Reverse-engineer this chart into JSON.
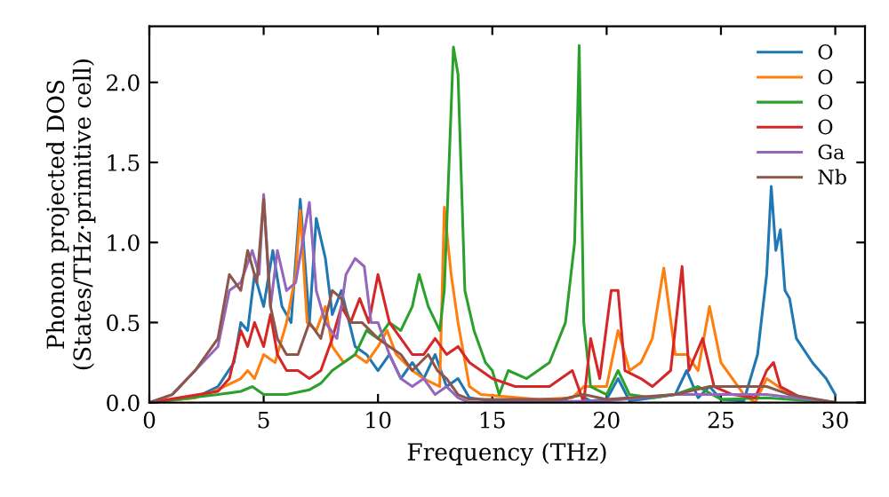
{
  "chart_data": {
    "type": "line",
    "xlabel": "Frequency (THz)",
    "ylabel": "Phonon projected DOS\n(States/THz·primitive cell)",
    "xlim": [
      0,
      31.3
    ],
    "xticks": [
      0,
      5,
      10,
      15,
      20,
      25,
      30
    ],
    "ylim": [
      0,
      2.35
    ],
    "yticks": [
      {
        "value": 0,
        "label": "0.0"
      },
      0.5,
      {
        "value": 1,
        "label": "1.0"
      },
      1.5,
      {
        "value": 2,
        "label": "2.0"
      }
    ],
    "legend": "top right",
    "grid": false,
    "series": [
      {
        "name": "O",
        "color": "#1f77b4",
        "x": [
          0,
          2,
          3,
          3.7,
          4,
          4.3,
          4.6,
          5,
          5.4,
          5.8,
          6.2,
          6.6,
          7,
          7.3,
          7.7,
          8,
          8.4,
          9,
          9.5,
          10,
          10.5,
          11,
          11.5,
          12,
          12.5,
          13,
          13.5,
          14,
          15,
          18,
          18.8,
          19.3,
          20,
          20.5,
          21,
          22,
          23,
          23.5,
          24,
          24.5,
          25,
          26,
          26.6,
          27,
          27.2,
          27.4,
          27.6,
          27.8,
          28,
          28.3,
          29,
          29.6,
          30
        ],
        "values": [
          0,
          0.03,
          0.1,
          0.25,
          0.5,
          0.45,
          0.8,
          0.6,
          0.95,
          0.6,
          0.5,
          1.27,
          0.5,
          1.15,
          0.9,
          0.55,
          0.7,
          0.35,
          0.3,
          0.2,
          0.3,
          0.15,
          0.25,
          0.15,
          0.3,
          0.1,
          0.15,
          0.03,
          0.01,
          0.01,
          0.05,
          0.01,
          0.02,
          0.15,
          0.01,
          0.03,
          0.05,
          0.2,
          0.03,
          0.1,
          0.02,
          0.01,
          0.3,
          0.8,
          1.35,
          0.95,
          1.08,
          0.7,
          0.65,
          0.4,
          0.25,
          0.15,
          0.05
        ]
      },
      {
        "name": "O",
        "color": "#ff7f0e",
        "x": [
          0,
          2,
          3,
          4,
          4.3,
          4.6,
          5,
          5.5,
          6,
          6.4,
          6.6,
          6.9,
          7.3,
          7.7,
          8,
          8.5,
          9,
          9.5,
          10,
          10.4,
          10.8,
          11.5,
          12,
          12.7,
          12.9,
          13.2,
          13.5,
          14,
          14.5,
          17,
          18.5,
          19,
          20,
          20.5,
          21,
          21.5,
          22,
          22.5,
          23,
          23.5,
          24,
          24.5,
          25,
          26,
          26.5,
          27,
          28,
          29,
          30
        ],
        "values": [
          0,
          0.03,
          0.08,
          0.15,
          0.2,
          0.15,
          0.3,
          0.25,
          0.5,
          0.8,
          1.2,
          0.5,
          0.45,
          0.6,
          0.35,
          0.25,
          0.3,
          0.25,
          0.35,
          0.45,
          0.3,
          0.2,
          0.15,
          0.1,
          1.22,
          0.8,
          0.5,
          0.1,
          0.05,
          0.02,
          0.03,
          0.1,
          0.1,
          0.45,
          0.2,
          0.25,
          0.4,
          0.84,
          0.3,
          0.3,
          0.2,
          0.6,
          0.25,
          0.05,
          0.0,
          0.15,
          0.05,
          0.02,
          0.0
        ]
      },
      {
        "name": "O",
        "color": "#2ca02c",
        "x": [
          0,
          3,
          4,
          4.5,
          5,
          6,
          7,
          7.5,
          8,
          9,
          9.5,
          10,
          10.5,
          11,
          11.5,
          11.8,
          12.2,
          12.7,
          12.9,
          13.3,
          13.5,
          13.8,
          14.2,
          14.7,
          15,
          15.3,
          15.7,
          16.5,
          17.5,
          18.2,
          18.6,
          18.8,
          19,
          19.3,
          20,
          20.5,
          21,
          22,
          23,
          24,
          25,
          27,
          28,
          30
        ],
        "values": [
          0,
          0.05,
          0.07,
          0.1,
          0.05,
          0.05,
          0.08,
          0.12,
          0.2,
          0.3,
          0.45,
          0.4,
          0.5,
          0.45,
          0.6,
          0.8,
          0.6,
          0.45,
          0.7,
          2.22,
          2.05,
          0.7,
          0.45,
          0.25,
          0.2,
          0.05,
          0.2,
          0.15,
          0.25,
          0.5,
          1.0,
          2.23,
          0.5,
          0.1,
          0.05,
          0.2,
          0.05,
          0.03,
          0.05,
          0.1,
          0.02,
          0.03,
          0.02,
          0.0
        ]
      },
      {
        "name": "O",
        "color": "#d62728",
        "x": [
          0,
          3,
          3.5,
          4,
          4.3,
          4.6,
          5,
          5.3,
          5.6,
          6,
          6.5,
          7,
          7.5,
          8,
          8.4,
          8.8,
          9.2,
          9.6,
          10,
          10.5,
          11,
          11.5,
          12,
          12.5,
          13,
          13.5,
          14,
          14.5,
          15,
          16,
          17.5,
          18.5,
          19,
          19.3,
          19.7,
          20.2,
          20.5,
          20.8,
          21.5,
          22,
          22.8,
          23.3,
          23.6,
          24.2,
          24.7,
          25.5,
          26.5,
          27,
          27.3,
          27.6,
          28.5,
          30
        ],
        "values": [
          0,
          0.07,
          0.15,
          0.45,
          0.35,
          0.5,
          0.35,
          0.55,
          0.3,
          0.2,
          0.2,
          0.15,
          0.2,
          0.4,
          0.6,
          0.5,
          0.65,
          0.5,
          0.8,
          0.5,
          0.4,
          0.3,
          0.3,
          0.4,
          0.3,
          0.35,
          0.25,
          0.2,
          0.15,
          0.1,
          0.1,
          0.2,
          0.0,
          0.4,
          0.15,
          0.7,
          0.7,
          0.2,
          0.15,
          0.1,
          0.2,
          0.85,
          0.2,
          0.4,
          0.1,
          0.05,
          0.03,
          0.2,
          0.25,
          0.1,
          0.03,
          0.0
        ]
      },
      {
        "name": "Ga",
        "color": "#9467bd",
        "x": [
          0,
          1,
          2,
          3,
          3.5,
          4,
          4.5,
          4.8,
          5,
          5.3,
          5.6,
          6,
          6.4,
          7,
          7.3,
          7.7,
          8.2,
          8.6,
          9,
          9.4,
          9.7,
          10,
          10.5,
          11,
          11.5,
          12,
          12.5,
          13,
          13.5,
          14,
          20,
          23,
          27,
          30
        ],
        "values": [
          0,
          0.05,
          0.2,
          0.35,
          0.7,
          0.75,
          0.95,
          0.8,
          1.3,
          0.6,
          0.95,
          0.7,
          0.75,
          1.25,
          0.7,
          0.5,
          0.4,
          0.8,
          0.9,
          0.85,
          0.5,
          0.5,
          0.3,
          0.15,
          0.1,
          0.15,
          0.05,
          0.1,
          0.03,
          0.0,
          0.01,
          0.05,
          0.05,
          0.0
        ]
      },
      {
        "name": "Nb",
        "color": "#8c564b",
        "x": [
          0,
          1,
          2,
          3,
          3.5,
          4,
          4.3,
          4.7,
          5,
          5.3,
          5.6,
          6,
          6.5,
          7,
          7.5,
          8,
          8.4,
          8.8,
          9.3,
          10,
          10.5,
          11,
          11.5,
          12.2,
          12.6,
          13,
          13.5,
          14,
          18,
          19,
          20,
          23,
          24.5,
          27,
          28,
          30
        ],
        "values": [
          0,
          0.05,
          0.2,
          0.4,
          0.8,
          0.7,
          0.95,
          0.75,
          1.27,
          0.6,
          0.4,
          0.3,
          0.3,
          0.5,
          0.4,
          0.7,
          0.65,
          0.5,
          0.5,
          0.4,
          0.35,
          0.3,
          0.2,
          0.3,
          0.2,
          0.15,
          0.05,
          0.02,
          0.02,
          0.05,
          0.02,
          0.05,
          0.1,
          0.1,
          0.05,
          0.0
        ]
      }
    ]
  }
}
